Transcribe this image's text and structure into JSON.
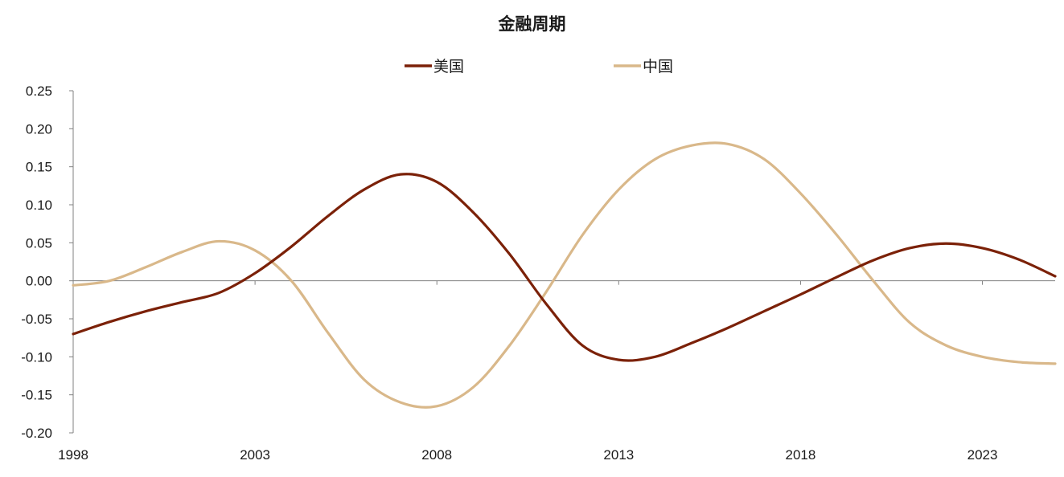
{
  "chart_data": {
    "type": "line",
    "title": "金融周期",
    "xlabel": "",
    "ylabel": "",
    "x_ticks": [
      "1998",
      "2003",
      "2008",
      "2013",
      "2018",
      "2023"
    ],
    "y_ticks": [
      "0.25",
      "0.20",
      "0.15",
      "0.10",
      "0.05",
      "0.00",
      "-0.05",
      "-0.10",
      "-0.15",
      "-0.20"
    ],
    "xlim": [
      1998,
      2025
    ],
    "ylim": [
      -0.2,
      0.25
    ],
    "legend_position": "top-center",
    "grid": false,
    "x": [
      1998,
      1999,
      2000,
      2001,
      2002,
      2003,
      2004,
      2005,
      2006,
      2007,
      2008,
      2009,
      2010,
      2011,
      2012,
      2013,
      2014,
      2015,
      2016,
      2017,
      2018,
      2019,
      2020,
      2021,
      2022,
      2023,
      2024,
      2025
    ],
    "series": [
      {
        "name": "美国",
        "color": "#7b2108",
        "values": [
          -0.07,
          -0.054,
          -0.04,
          -0.028,
          -0.016,
          0.01,
          0.045,
          0.085,
          0.12,
          0.14,
          0.13,
          0.09,
          0.035,
          -0.03,
          -0.085,
          -0.104,
          -0.1,
          -0.082,
          -0.062,
          -0.04,
          -0.018,
          0.005,
          0.027,
          0.043,
          0.049,
          0.043,
          0.028,
          0.006
        ]
      },
      {
        "name": "中国",
        "color": "#d9b88a",
        "values": [
          -0.006,
          0.0,
          0.018,
          0.038,
          0.052,
          0.04,
          0.0,
          -0.068,
          -0.13,
          -0.16,
          -0.165,
          -0.14,
          -0.085,
          -0.015,
          0.06,
          0.12,
          0.16,
          0.178,
          0.18,
          0.16,
          0.115,
          0.06,
          0.0,
          -0.055,
          -0.085,
          -0.1,
          -0.107,
          -0.109
        ]
      }
    ]
  }
}
